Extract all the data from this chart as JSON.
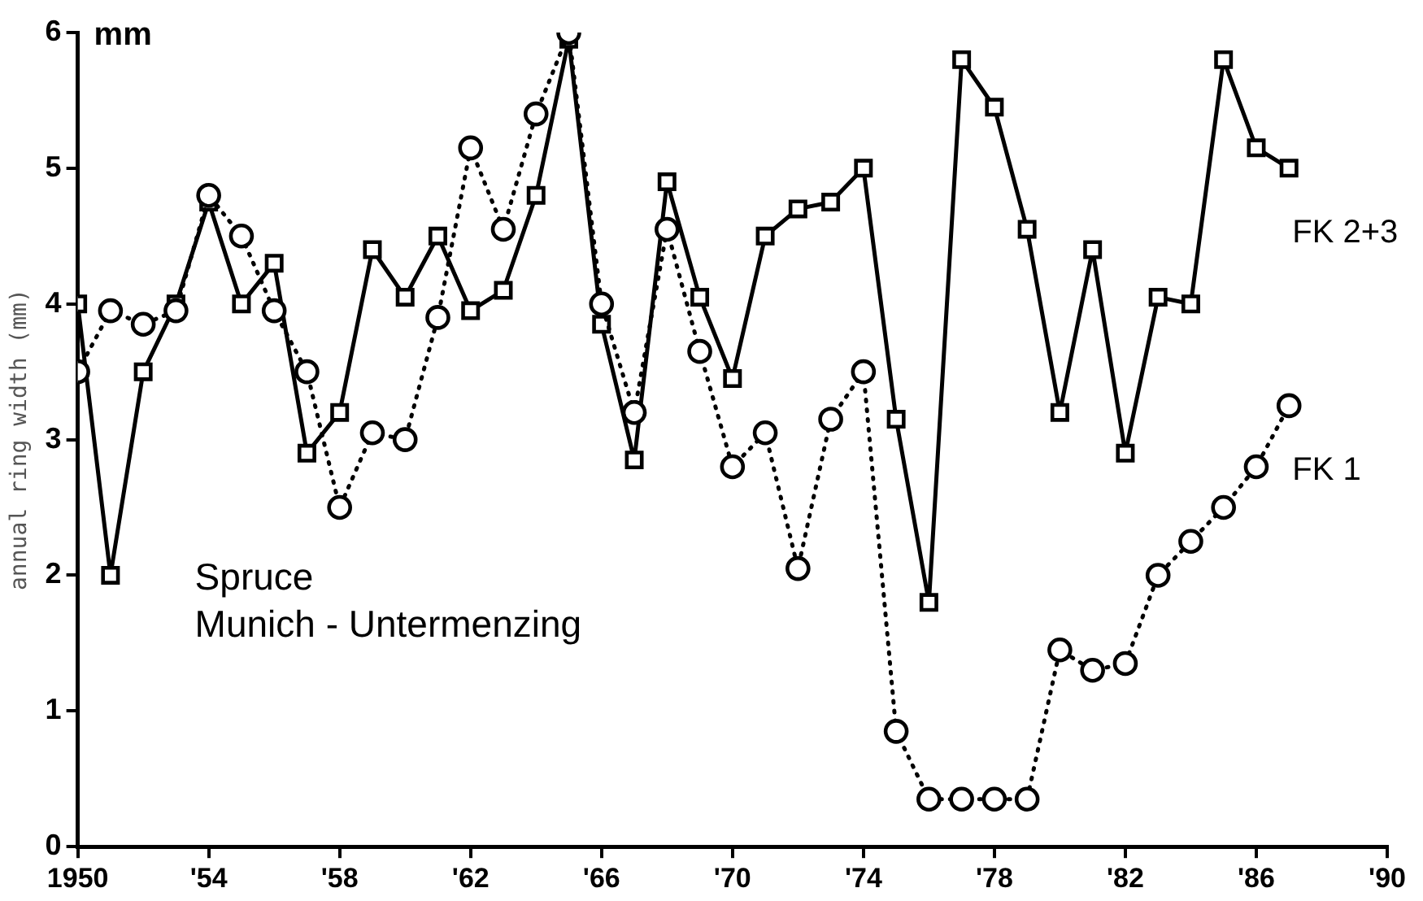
{
  "chart_data": {
    "type": "line",
    "ylabel": "annual ring width (mm)",
    "annotations": [
      "mm",
      "Spruce",
      "Munich - Untermenzing"
    ],
    "x": [
      1950,
      1951,
      1952,
      1953,
      1954,
      1955,
      1956,
      1957,
      1958,
      1959,
      1960,
      1961,
      1962,
      1963,
      1964,
      1965,
      1966,
      1967,
      1968,
      1969,
      1970,
      1971,
      1972,
      1973,
      1974,
      1975,
      1976,
      1977,
      1978,
      1979,
      1980,
      1981,
      1982,
      1983,
      1984,
      1985,
      1986,
      1987
    ],
    "series": [
      {
        "name": "FK 2+3",
        "color": "#000000",
        "marker": "square",
        "line_style": "solid",
        "values": [
          4.0,
          2.0,
          3.5,
          4.0,
          4.75,
          4.0,
          4.3,
          2.9,
          3.2,
          4.4,
          4.05,
          4.5,
          3.95,
          4.1,
          4.8,
          5.95,
          3.85,
          2.85,
          4.9,
          4.05,
          3.45,
          4.5,
          4.7,
          4.75,
          5.0,
          3.15,
          1.8,
          5.8,
          5.45,
          4.55,
          3.2,
          4.4,
          2.9,
          4.05,
          4.0,
          5.8,
          5.15,
          5.0
        ]
      },
      {
        "name": "FK 1",
        "color": "#000000",
        "marker": "circle",
        "line_style": "dotted",
        "values": [
          3.5,
          3.95,
          3.85,
          3.95,
          4.8,
          4.5,
          3.95,
          3.5,
          2.5,
          3.05,
          3.0,
          3.9,
          5.15,
          4.55,
          5.4,
          6.0,
          4.0,
          3.2,
          4.55,
          3.65,
          2.8,
          3.05,
          2.05,
          3.15,
          3.5,
          0.85,
          0.35,
          0.35,
          0.35,
          0.35,
          1.45,
          1.3,
          1.35,
          2.0,
          2.25,
          2.5,
          2.8,
          3.25
        ]
      }
    ],
    "xlim": [
      1950,
      1990
    ],
    "xticks": [
      1950,
      {
        "value": 1954,
        "label": "'54"
      },
      {
        "value": 1958,
        "label": "'58"
      },
      {
        "value": 1962,
        "label": "'62"
      },
      {
        "value": 1966,
        "label": "'66"
      },
      {
        "value": 1970,
        "label": "'70"
      },
      {
        "value": 1974,
        "label": "'74"
      },
      {
        "value": 1978,
        "label": "'78"
      },
      {
        "value": 1982,
        "label": "'82"
      },
      {
        "value": 1986,
        "label": "'86"
      },
      {
        "value": 1990,
        "label": "'90"
      }
    ],
    "ylim": [
      0,
      6
    ],
    "yticks": [
      0,
      1,
      2,
      3,
      4,
      5,
      6
    ],
    "grid": false,
    "legend": false
  }
}
